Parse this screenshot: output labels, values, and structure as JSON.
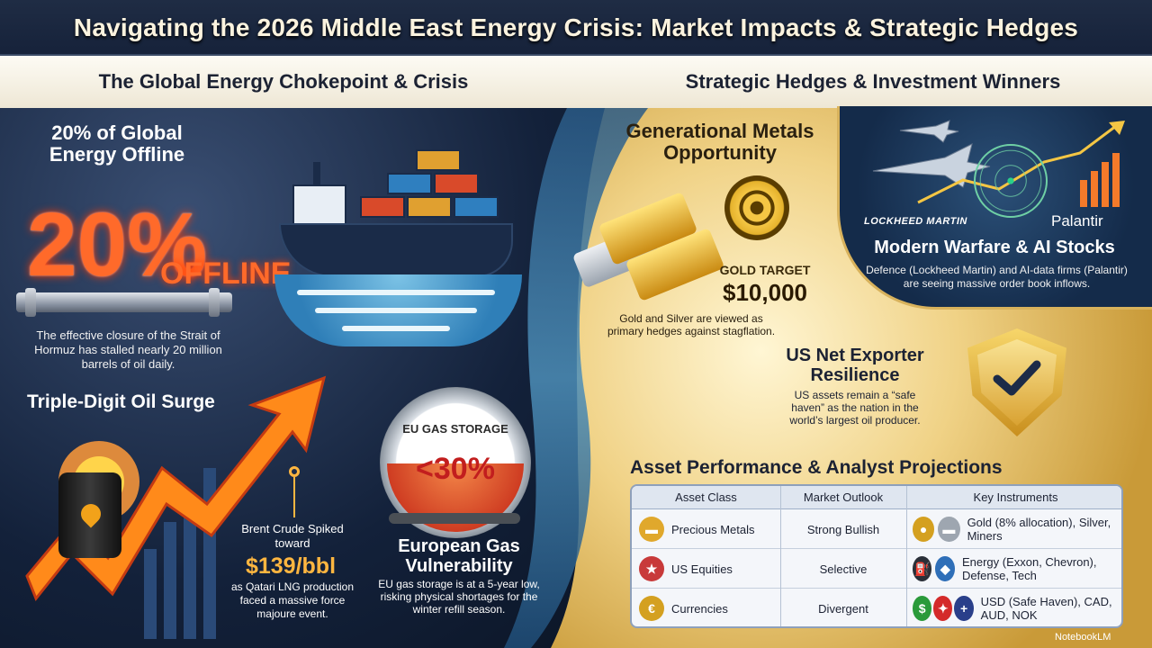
{
  "title": "Navigating the 2026 Middle East Energy Crisis: Market Impacts & Strategic Hedges",
  "left_section": {
    "heading": "The Global Energy Chokepoint & Crisis",
    "offline": {
      "title": "20% of Global Energy Offline",
      "big_value": "20%",
      "big_word": "OFFLINE",
      "text": "The effective closure of the Strait of Hormuz has stalled nearly 20 million barrels of oil daily."
    },
    "oil": {
      "title": "Triple-Digit Oil Surge",
      "brent_label": "Brent Crude Spiked toward",
      "brent_price": "$139/bbl",
      "qatar_text": "as Qatari LNG production faced a massive force majoure event."
    },
    "gas": {
      "gauge_label": "EU GAS STORAGE",
      "gauge_value": "<30%",
      "title": "European Gas Vulnerability",
      "text": "EU gas storage is at a 5-year low, risking physical shortages for the winter refill season."
    }
  },
  "right_section": {
    "heading": "Strategic Hedges & Investment Winners",
    "metals": {
      "title": "Generational Metals Opportunity",
      "target_label": "GOLD TARGET",
      "target_value": "$10,000",
      "text": "Gold and Silver are viewed as primary hedges against stagflation."
    },
    "warfare": {
      "logo_lockheed": "LOCKHEED MARTIN",
      "logo_palantir": "Palantir",
      "title": "Modern Warfare & AI Stocks",
      "text": "Defence (Lockheed Martin) and AI-data firms (Palantir) are seeing massive order book inflows."
    },
    "us": {
      "title": "US Net Exporter Resilience",
      "text": "US assets remain a “safe haven” as the nation in the world’s largest oil producer."
    },
    "table": {
      "title": "Asset Performance & Analyst Projections",
      "headers": [
        "Asset Class",
        "Market Outlook",
        "Key Instruments"
      ],
      "rows": [
        {
          "asset": "Precious Metals",
          "outlook": "Strong Bullish",
          "instruments": "Gold (8% allocation), Silver, Miners"
        },
        {
          "asset": "US Equities",
          "outlook": "Selective",
          "instruments": "Energy (Exxon, Chevron), Defense, Tech"
        },
        {
          "asset": "Currencies",
          "outlook": "Divergent",
          "instruments": "USD (Safe Haven), CAD, AUD, NOK"
        }
      ]
    }
  },
  "branding": "NotebookLM",
  "colors": {
    "accent_orange": "#ff6a2a",
    "gold": "#f4c644",
    "navy": "#13213a"
  }
}
